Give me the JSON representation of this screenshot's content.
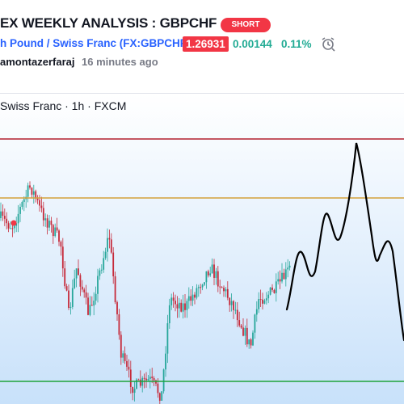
{
  "header": {
    "title": "EX WEEKLY ANALYSIS : GBPCHF",
    "direction": "SHORT",
    "symbol": "h Pound / Swiss Franc (FX:GBPCHF)",
    "price": "1.26931",
    "change": "0.00144",
    "change_percent": "0.11%",
    "author": "amontazerfaraj",
    "published": "16 minutes ago"
  },
  "chart": {
    "label": "Swiss Franc · 1h · FXCM"
  }
}
